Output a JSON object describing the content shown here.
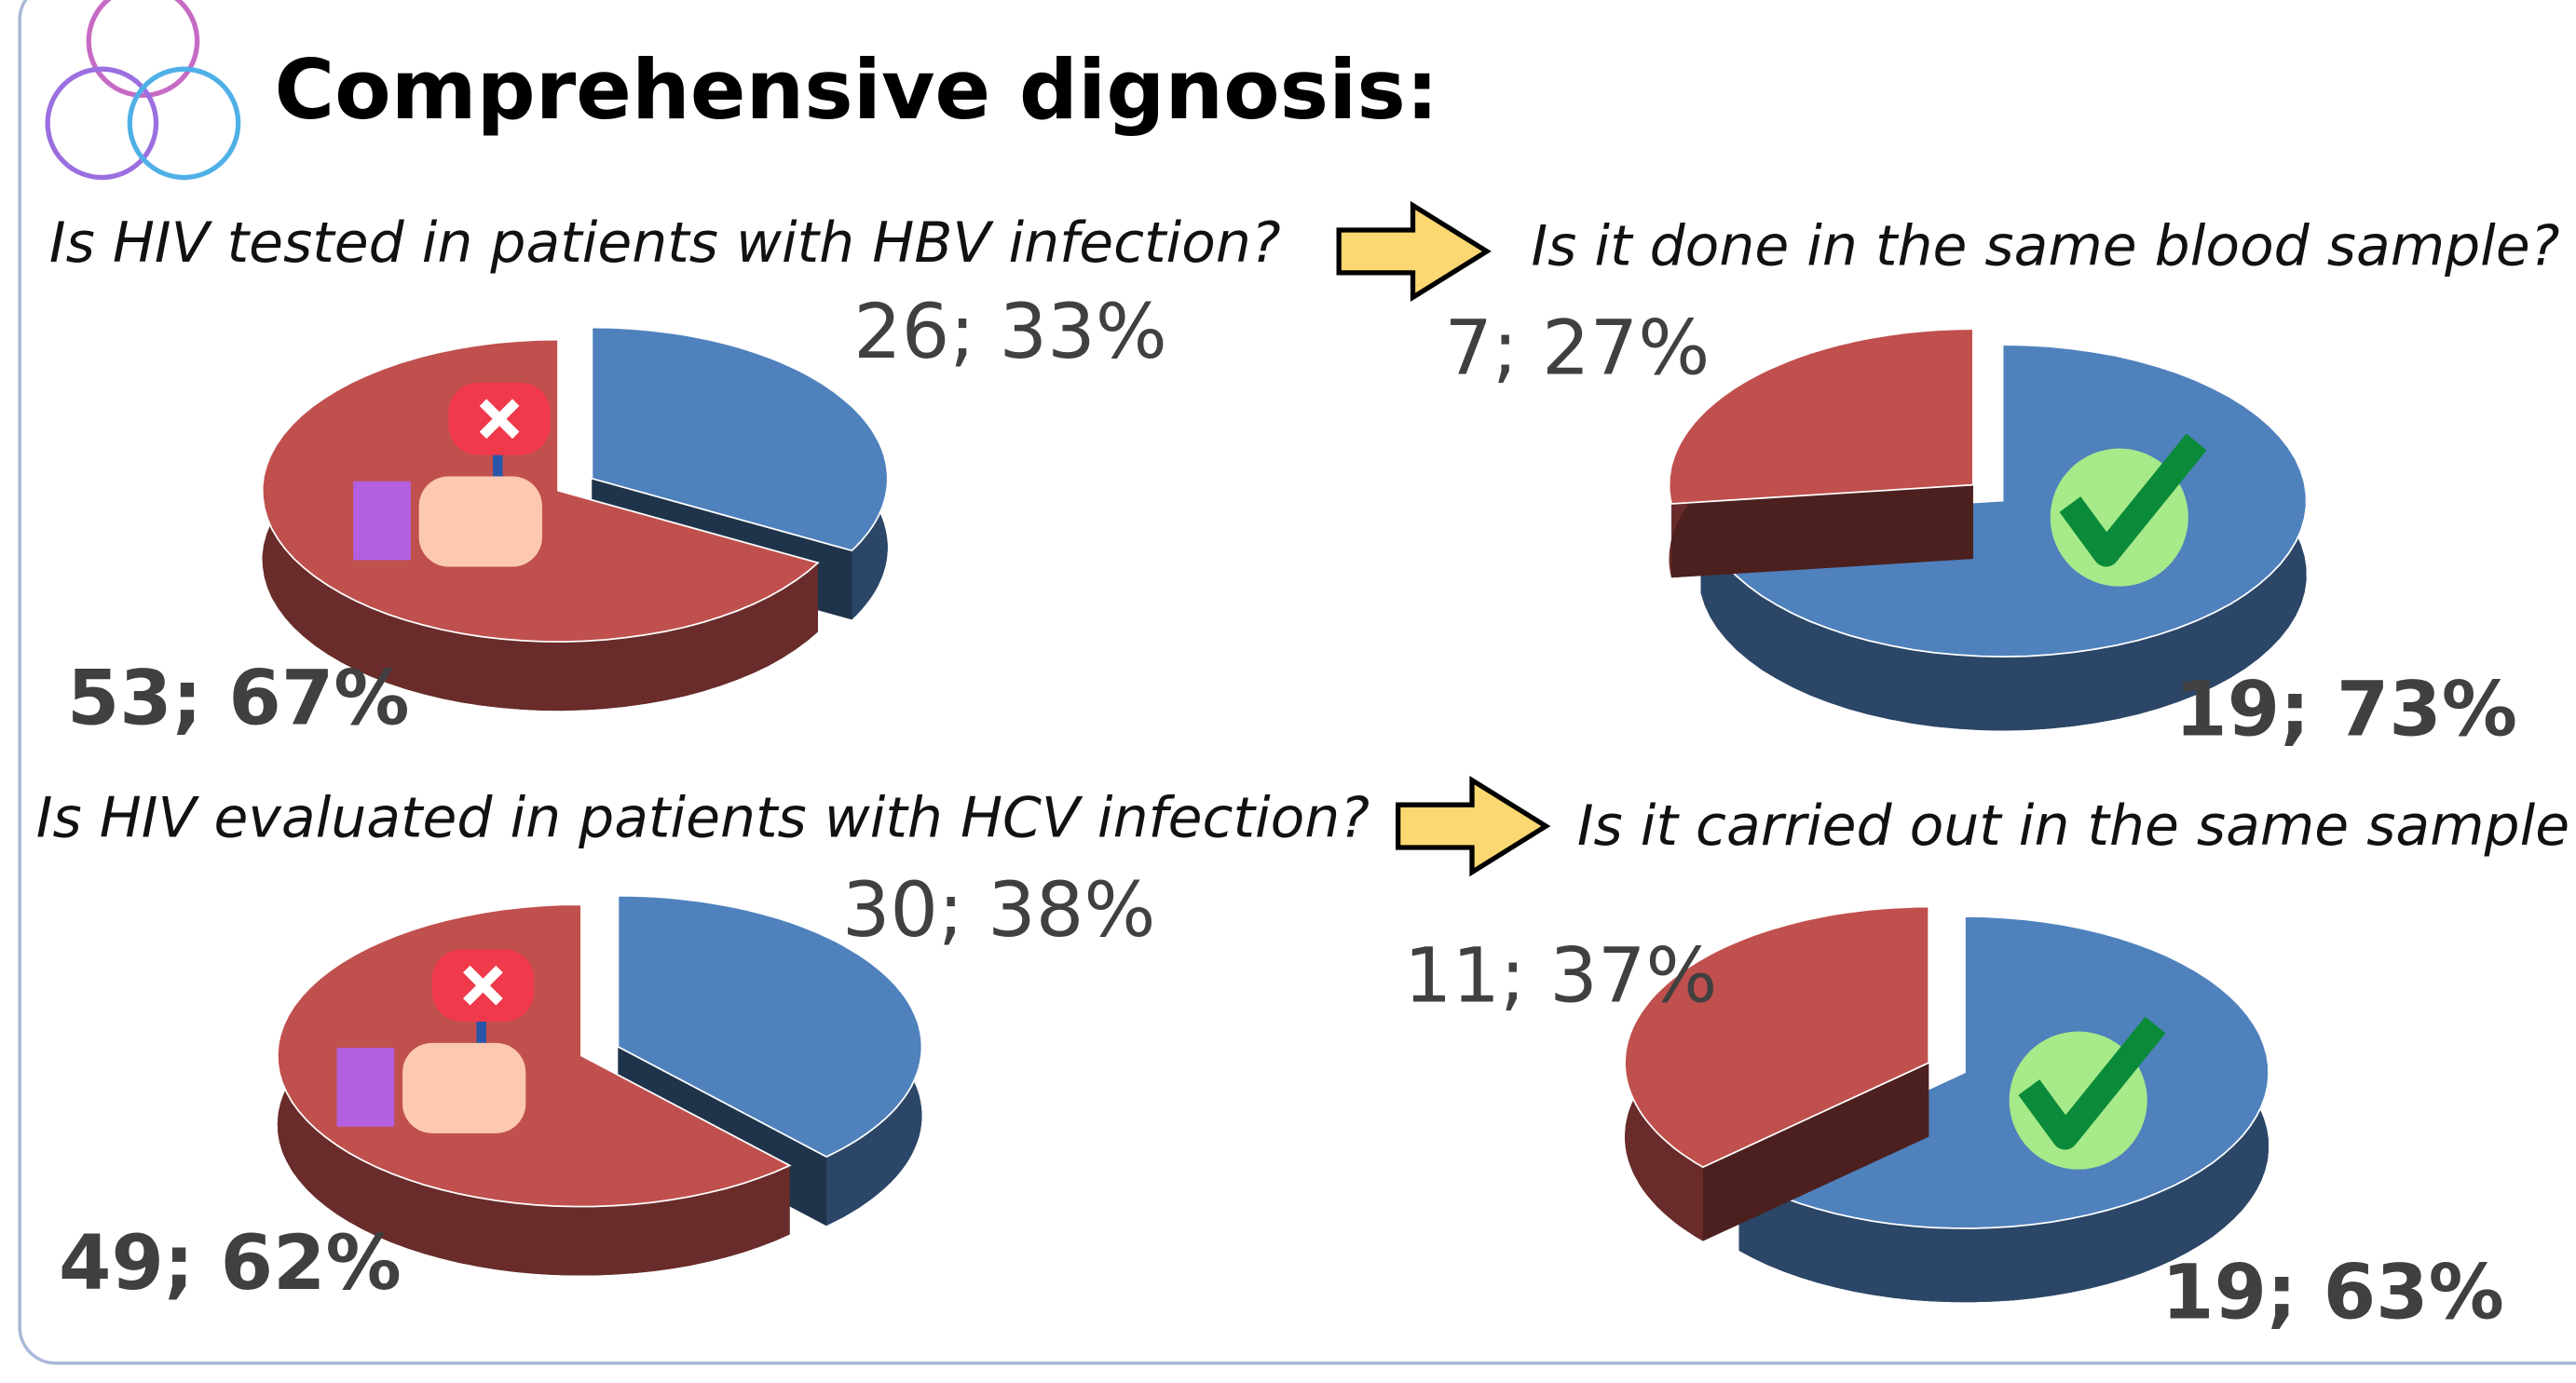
{
  "title": "Comprehensive dignosis:",
  "chart_data": [
    {
      "type": "pie",
      "title": "Is HIV tested in patients with HBV infection?",
      "values": [
        26,
        53
      ],
      "value_labels": [
        "26; 33%",
        "53; 67%"
      ],
      "colors": [
        "#4f81bd",
        "#c0504d"
      ]
    },
    {
      "type": "pie",
      "title": "Is it done in the same blood sample?",
      "values": [
        19,
        7
      ],
      "value_labels": [
        "19; 73%",
        "7; 27%"
      ],
      "colors": [
        "#4f81bd",
        "#c0504d"
      ]
    },
    {
      "type": "pie",
      "title": "Is HIV evaluated in patients with HCV infection?",
      "values": [
        30,
        49
      ],
      "value_labels": [
        "30; 38%",
        "49; 62%"
      ],
      "colors": [
        "#4f81bd",
        "#c0504d"
      ]
    },
    {
      "type": "pie",
      "title": "Is it carried out in the same sample?",
      "values": [
        19,
        11
      ],
      "value_labels": [
        "19; 63%",
        "11; 37%"
      ],
      "colors": [
        "#4f81bd",
        "#c0504d"
      ]
    }
  ]
}
